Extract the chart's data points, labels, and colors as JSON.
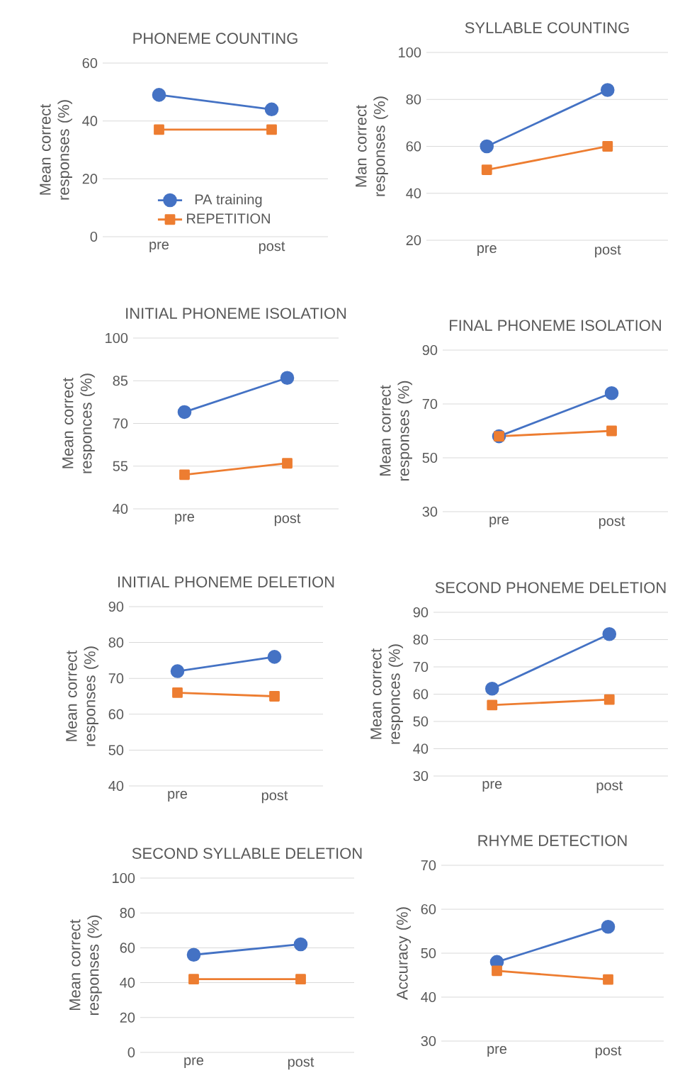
{
  "chart_data": [
    {
      "type": "line",
      "title": "PHONEME COUNTING",
      "ylabel": "Mean correct responses (%)",
      "categories": [
        "pre",
        "post"
      ],
      "ylim": [
        0,
        60
      ],
      "yticks": [
        0,
        20,
        40,
        60
      ],
      "grid": "y",
      "legend": "bottom",
      "series": [
        {
          "name": "PA training",
          "color": "#4472c4",
          "marker": "circle",
          "values": [
            49,
            44
          ]
        },
        {
          "name": "REPETITION",
          "color": "#ed7d31",
          "marker": "square",
          "values": [
            37,
            37
          ]
        }
      ]
    },
    {
      "type": "line",
      "title": "SYLLABLE COUNTING",
      "ylabel": "Man correct responses (%)",
      "categories": [
        "pre",
        "post"
      ],
      "ylim": [
        20,
        100
      ],
      "yticks": [
        20,
        40,
        60,
        80,
        100
      ],
      "grid": "y",
      "series": [
        {
          "color": "#4472c4",
          "marker": "circle",
          "values": [
            60,
            84
          ]
        },
        {
          "color": "#ed7d31",
          "marker": "square",
          "values": [
            50,
            60
          ]
        }
      ]
    },
    {
      "type": "line",
      "title": "INITIAL PHONEME ISOLATION",
      "ylabel": "Mean correct responces (%)",
      "categories": [
        "pre",
        "post"
      ],
      "ylim": [
        40,
        100
      ],
      "yticks": [
        40,
        55,
        70,
        85,
        100
      ],
      "grid": "y",
      "series": [
        {
          "color": "#4472c4",
          "marker": "circle",
          "values": [
            74,
            86
          ]
        },
        {
          "color": "#ed7d31",
          "marker": "square",
          "values": [
            52,
            56
          ]
        }
      ]
    },
    {
      "type": "line",
      "title": "FINAL PHONEME ISOLATION",
      "ylabel": "Mean correct responses (%)",
      "categories": [
        "pre",
        "post"
      ],
      "ylim": [
        30,
        90
      ],
      "yticks": [
        30,
        50,
        70,
        90
      ],
      "grid": "y",
      "series": [
        {
          "color": "#4472c4",
          "marker": "circle",
          "values": [
            58,
            74
          ]
        },
        {
          "color": "#ed7d31",
          "marker": "square",
          "values": [
            58,
            60
          ]
        }
      ]
    },
    {
      "type": "line",
      "title": "INITIAL PHONEME DELETION",
      "ylabel": "Mean correct responses (%)",
      "categories": [
        "pre",
        "post"
      ],
      "ylim": [
        40,
        90
      ],
      "yticks": [
        40,
        50,
        60,
        70,
        80,
        90
      ],
      "grid": "y",
      "series": [
        {
          "color": "#4472c4",
          "marker": "circle",
          "values": [
            72,
            76
          ]
        },
        {
          "color": "#ed7d31",
          "marker": "square",
          "values": [
            66,
            65
          ]
        }
      ]
    },
    {
      "type": "line",
      "title": "SECOND PHONEME DELETION",
      "ylabel": "Mean correct responces (%)",
      "categories": [
        "pre",
        "post"
      ],
      "ylim": [
        30,
        90
      ],
      "yticks": [
        30,
        40,
        50,
        60,
        70,
        80,
        90
      ],
      "grid": "y",
      "series": [
        {
          "color": "#4472c4",
          "marker": "circle",
          "values": [
            62,
            82
          ]
        },
        {
          "color": "#ed7d31",
          "marker": "square",
          "values": [
            56,
            58
          ]
        }
      ]
    },
    {
      "type": "line",
      "title": "SECOND SYLLABLE DELETION",
      "ylabel": "Mean correct responses (%)",
      "categories": [
        "pre",
        "post"
      ],
      "ylim": [
        0,
        100
      ],
      "yticks": [
        0,
        20,
        40,
        60,
        80,
        100
      ],
      "grid": "y",
      "series": [
        {
          "color": "#4472c4",
          "marker": "circle",
          "values": [
            56,
            62
          ]
        },
        {
          "color": "#ed7d31",
          "marker": "square",
          "values": [
            42,
            42
          ]
        }
      ]
    },
    {
      "type": "line",
      "title": "RHYME DETECTION",
      "ylabel": "Accuracy (%)",
      "categories": [
        "pre",
        "post"
      ],
      "ylim": [
        30,
        70
      ],
      "yticks": [
        30,
        40,
        50,
        60,
        70
      ],
      "grid": "y",
      "series": [
        {
          "color": "#4472c4",
          "marker": "circle",
          "values": [
            48,
            56
          ]
        },
        {
          "color": "#ed7d31",
          "marker": "square",
          "values": [
            46,
            44
          ]
        }
      ]
    }
  ]
}
